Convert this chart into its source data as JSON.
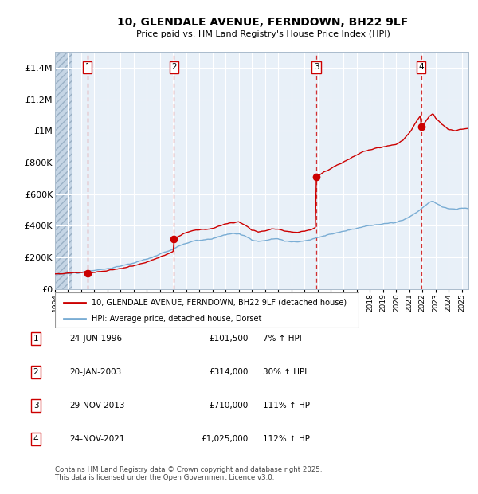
{
  "title": "10, GLENDALE AVENUE, FERNDOWN, BH22 9LF",
  "subtitle": "Price paid vs. HM Land Registry's House Price Index (HPI)",
  "hpi_label": "HPI: Average price, detached house, Dorset",
  "price_label": "10, GLENDALE AVENUE, FERNDOWN, BH22 9LF (detached house)",
  "footer": "Contains HM Land Registry data © Crown copyright and database right 2025.\nThis data is licensed under the Open Government Licence v3.0.",
  "ylim": [
    0,
    1500000
  ],
  "yticks": [
    0,
    200000,
    400000,
    600000,
    800000,
    1000000,
    1200000,
    1400000
  ],
  "ytick_labels": [
    "£0",
    "£200K",
    "£400K",
    "£600K",
    "£800K",
    "£1M",
    "£1.2M",
    "£1.4M"
  ],
  "xlim_start": 1994.0,
  "xlim_end": 2025.5,
  "purchases": [
    {
      "num": 1,
      "date": "24-JUN-1996",
      "year": 1996.47,
      "price": 101500,
      "hpi_pct": "7% ↑ HPI"
    },
    {
      "num": 2,
      "date": "20-JAN-2003",
      "year": 2003.05,
      "price": 314000,
      "hpi_pct": "30% ↑ HPI"
    },
    {
      "num": 3,
      "date": "29-NOV-2013",
      "year": 2013.91,
      "price": 710000,
      "hpi_pct": "111% ↑ HPI"
    },
    {
      "num": 4,
      "date": "24-NOV-2021",
      "year": 2021.9,
      "price": 1025000,
      "hpi_pct": "112% ↑ HPI"
    }
  ],
  "red_color": "#cc0000",
  "blue_color": "#7aadd4",
  "bg_chart": "#e8f0f8",
  "grid_color": "#ffffff",
  "legend_border": "#999999"
}
